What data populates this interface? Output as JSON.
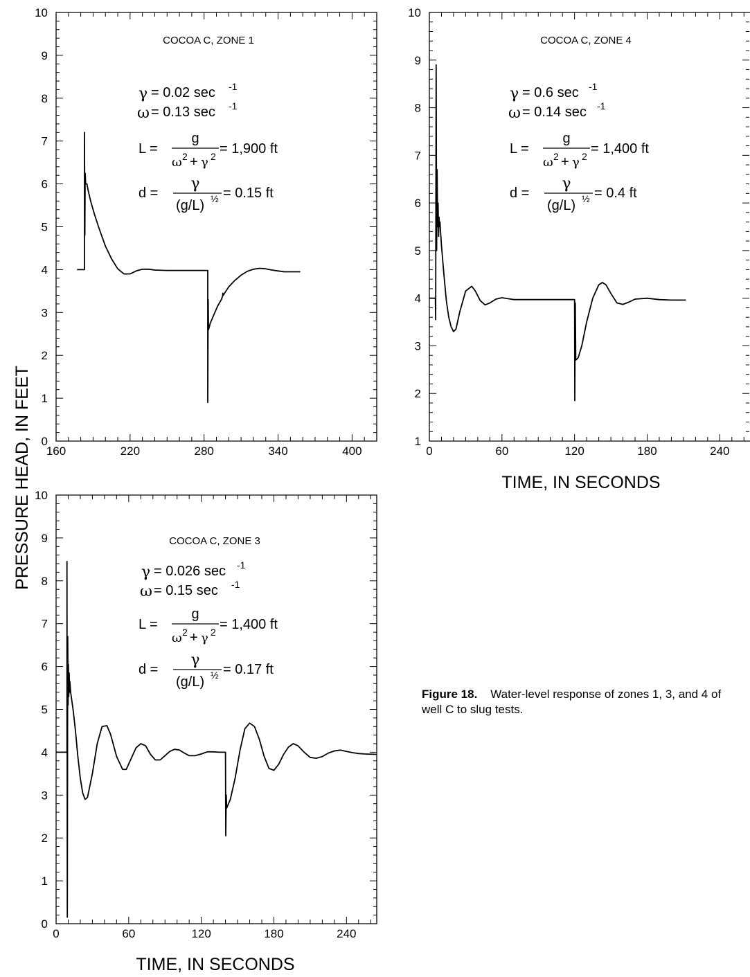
{
  "ylabel": "PRESSURE HEAD, IN FEET",
  "xlabel_right": "TIME, IN SECONDS",
  "xlabel_bottom": "TIME, IN SECONDS",
  "caption": {
    "label": "Figure 18.",
    "text": "Water-level response of zones 1, 3, and 4 of well C to slug tests."
  },
  "panels": [
    {
      "title": "COCOA C,  ZONE 1",
      "params": {
        "gamma": "= 0.02 sec",
        "gamma_exp": "-1",
        "omega": "= 0.13 sec",
        "omega_exp": "-1",
        "L_result": "= 1,900 ft",
        "d_result": "= 0.15 ft"
      }
    },
    {
      "title": "COCOA C, ZONE 4",
      "params": {
        "gamma": "= 0.6 sec",
        "gamma_exp": "-1",
        "omega": "= 0.14 sec",
        "omega_exp": "-1",
        "L_result": "= 1,400 ft",
        "d_result": "= 0.4 ft"
      }
    },
    {
      "title": "COCOA C, ZONE 3",
      "params": {
        "gamma": "= 0.026 sec",
        "gamma_exp": "-1",
        "omega": "= 0.15  sec",
        "omega_exp": "-1",
        "L_result": "= 1,400 ft",
        "d_result": "= 0.17 ft"
      }
    }
  ],
  "chart_data": [
    {
      "type": "line",
      "title": "COCOA C,  ZONE 1",
      "xlim": [
        160,
        420
      ],
      "ylim": [
        0,
        10
      ],
      "xticks": [
        160,
        220,
        280,
        340,
        400
      ],
      "yticks": [
        0,
        1,
        2,
        3,
        4,
        5,
        6,
        7,
        8,
        9,
        10
      ],
      "grid": false,
      "series": [
        {
          "x": [
            177,
            183,
            183,
            183.3,
            183.6,
            184,
            185,
            186,
            188,
            191,
            195,
            200,
            205,
            210,
            215,
            220,
            225,
            230,
            235,
            240,
            250,
            260,
            270,
            283,
            283,
            283.3,
            283.6,
            285,
            288,
            291,
            294,
            295,
            295.2,
            295.5,
            300,
            305,
            310,
            315,
            320,
            325,
            330,
            335,
            340,
            345,
            350,
            358
          ],
          "y": [
            4.0,
            4.0,
            7.2,
            4.8,
            6.25,
            6.0,
            6.0,
            5.85,
            5.6,
            5.3,
            4.95,
            4.55,
            4.25,
            4.02,
            3.9,
            3.9,
            3.97,
            4.01,
            4.01,
            3.99,
            3.98,
            3.98,
            3.98,
            3.98,
            0.9,
            3.3,
            2.6,
            2.75,
            2.95,
            3.15,
            3.3,
            3.38,
            3.45,
            3.4,
            3.6,
            3.75,
            3.87,
            3.96,
            4.01,
            4.03,
            4.02,
            3.99,
            3.97,
            3.95,
            3.95,
            3.95
          ]
        }
      ]
    },
    {
      "type": "line",
      "title": "COCOA C, ZONE 4",
      "xlim": [
        0,
        265
      ],
      "ylim": [
        1,
        10
      ],
      "xticks": [
        0,
        60,
        120,
        180,
        240
      ],
      "yticks": [
        1,
        2,
        3,
        4,
        5,
        6,
        7,
        8,
        9,
        10
      ],
      "grid": false,
      "series": [
        {
          "x": [
            0,
            5,
            5.2,
            5.6,
            6,
            6.4,
            6.8,
            7.2,
            7.6,
            8,
            8.4,
            8.8,
            9,
            10,
            12,
            14,
            16,
            18,
            20,
            22,
            25,
            30,
            35,
            38,
            42,
            46,
            50,
            55,
            60,
            65,
            70,
            80,
            90,
            100,
            110,
            120,
            120.2,
            120.6,
            121,
            123,
            126,
            130,
            135,
            140,
            143,
            146,
            150,
            155,
            160,
            165,
            170,
            180,
            190,
            200,
            212
          ],
          "y": [
            4.0,
            4.0,
            3.55,
            8.9,
            5.0,
            6.7,
            5.5,
            6.0,
            5.3,
            5.7,
            5.5,
            5.6,
            5.5,
            5.1,
            4.5,
            3.95,
            3.6,
            3.4,
            3.3,
            3.35,
            3.7,
            4.15,
            4.25,
            4.15,
            3.95,
            3.86,
            3.9,
            3.98,
            4.01,
            3.99,
            3.97,
            3.97,
            3.97,
            3.97,
            3.97,
            3.97,
            1.85,
            3.9,
            2.7,
            2.75,
            3.0,
            3.5,
            4.0,
            4.28,
            4.33,
            4.28,
            4.1,
            3.9,
            3.87,
            3.92,
            3.98,
            4.0,
            3.97,
            3.96,
            3.96
          ]
        }
      ]
    },
    {
      "type": "line",
      "title": "COCOA C, ZONE 3",
      "xlim": [
        0,
        265
      ],
      "ylim": [
        0,
        10
      ],
      "xticks": [
        0,
        60,
        120,
        180,
        240
      ],
      "yticks": [
        0,
        1,
        2,
        3,
        4,
        5,
        6,
        7,
        8,
        9,
        10
      ],
      "grid": false,
      "series": [
        {
          "x": [
            0,
            9,
            9,
            9.3,
            9.6,
            9.9,
            10.2,
            10.5,
            10.8,
            11.1,
            11.4,
            12,
            14,
            16,
            18,
            20,
            22,
            24,
            26,
            30,
            34,
            38,
            42,
            45,
            50,
            55,
            58,
            62,
            66,
            70,
            74,
            78,
            82,
            86,
            90,
            94,
            98,
            102,
            106,
            110,
            115,
            120,
            125,
            130,
            135,
            140,
            140.2,
            140.6,
            141,
            144,
            148,
            152,
            156,
            160,
            164,
            168,
            172,
            176,
            180,
            184,
            188,
            192,
            196,
            200,
            205,
            210,
            215,
            220,
            225,
            230,
            235,
            240,
            245,
            250,
            255,
            265
          ],
          "y": [
            4.0,
            4.0,
            8.45,
            0.15,
            6.7,
            5.1,
            6.05,
            5.3,
            5.85,
            5.4,
            5.65,
            5.4,
            5.0,
            4.5,
            3.9,
            3.4,
            3.05,
            2.9,
            2.95,
            3.5,
            4.2,
            4.6,
            4.62,
            4.42,
            3.9,
            3.6,
            3.6,
            3.85,
            4.1,
            4.2,
            4.15,
            3.95,
            3.82,
            3.82,
            3.92,
            4.02,
            4.07,
            4.05,
            3.98,
            3.92,
            3.92,
            3.96,
            4.01,
            4.01,
            4.0,
            4.0,
            2.05,
            3.0,
            2.7,
            2.9,
            3.4,
            4.05,
            4.55,
            4.68,
            4.6,
            4.3,
            3.9,
            3.62,
            3.58,
            3.72,
            3.95,
            4.12,
            4.2,
            4.15,
            4.0,
            3.88,
            3.86,
            3.9,
            3.98,
            4.03,
            4.05,
            4.02,
            3.99,
            3.97,
            3.96,
            3.95
          ]
        }
      ]
    }
  ]
}
